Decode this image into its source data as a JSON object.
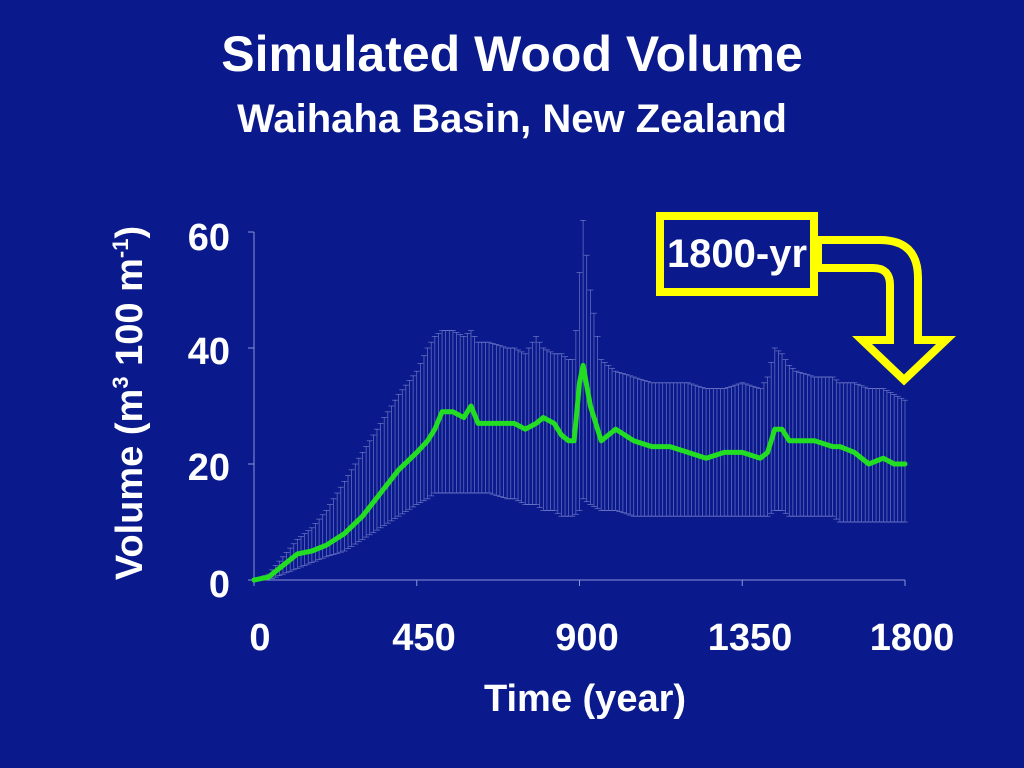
{
  "colors": {
    "background": "#0a1a8c",
    "line": "#22dd22",
    "error_bars": "#8c93d8",
    "callout": "#ffff00",
    "text": "#ffffff"
  },
  "slide": {
    "title": "Simulated Wood Volume",
    "subtitle": "Waihaha Basin, New Zealand",
    "callout": "1800-yr"
  },
  "chart_data": {
    "type": "line",
    "title": "Simulated Wood Volume",
    "subtitle": "Waihaha Basin, New Zealand",
    "xlabel": "Time (year)",
    "ylabel": "Volume (m3 100 m-1)",
    "xlim": [
      0,
      1800
    ],
    "ylim": [
      0,
      60
    ],
    "x_ticks": [
      "0",
      "450",
      "900",
      "1350",
      "1800"
    ],
    "y_ticks": [
      "0",
      "20",
      "40",
      "60"
    ],
    "grid": false,
    "series": [
      {
        "x": [
          0,
          40,
          80,
          120,
          160,
          200,
          250,
          300,
          350,
          400,
          450,
          480,
          500,
          520,
          550,
          580,
          600,
          620,
          650,
          700,
          720,
          750,
          780,
          800,
          830,
          850,
          870,
          885,
          900,
          910,
          930,
          960,
          1000,
          1050,
          1100,
          1150,
          1200,
          1250,
          1300,
          1350,
          1400,
          1420,
          1440,
          1460,
          1480,
          1500,
          1550,
          1600,
          1620,
          1660,
          1700,
          1740,
          1770,
          1800
        ],
        "values": [
          0,
          0.5,
          2.5,
          4.5,
          5,
          6,
          8,
          11,
          15,
          19,
          22,
          24,
          26,
          29,
          29,
          28,
          30,
          27,
          27,
          27,
          27,
          26,
          27,
          28,
          27,
          25,
          24,
          24,
          34,
          37,
          30,
          24,
          26,
          24,
          23,
          23,
          22,
          21,
          22,
          22,
          21,
          22,
          26,
          26,
          24,
          24,
          24,
          23,
          23,
          22,
          20,
          21,
          20,
          20
        ],
        "error_high": [
          0,
          1,
          4,
          7,
          9,
          12,
          17,
          22,
          27,
          32,
          36,
          40,
          42,
          43,
          43,
          42,
          43,
          41,
          41,
          40,
          40,
          39,
          42,
          40,
          39,
          39,
          38,
          38,
          53,
          62,
          50,
          38,
          36,
          35,
          34,
          34,
          34,
          33,
          33,
          34,
          33,
          35,
          40,
          39,
          37,
          36,
          35,
          35,
          34,
          34,
          33,
          33,
          32,
          31
        ],
        "error_low": [
          0,
          0,
          1,
          2,
          3,
          4,
          5,
          7,
          9,
          11,
          13,
          14,
          15,
          15,
          15,
          15,
          15,
          15,
          15,
          14,
          14,
          13,
          13,
          12,
          12,
          11,
          11,
          11,
          12,
          14,
          13,
          12,
          12,
          11,
          11,
          11,
          11,
          11,
          11,
          11,
          11,
          11,
          12,
          12,
          11,
          11,
          11,
          11,
          10,
          10,
          10,
          10,
          10,
          10
        ]
      }
    ]
  }
}
